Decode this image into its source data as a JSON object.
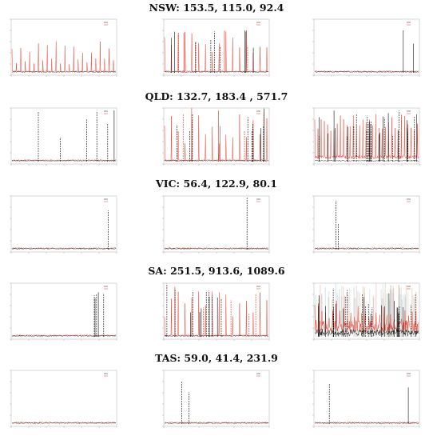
{
  "colors": {
    "forecast": "#e8301e",
    "actual": "#111111",
    "frame": "#bdbdbd",
    "band": "#e0e0e0"
  },
  "rows": [
    {
      "title": "NSW: 153.5, 115.0, 92.4",
      "chart_data": [
        {
          "type": "line",
          "pattern": "periodic-red",
          "spikes": 0
        },
        {
          "type": "line",
          "pattern": "mixed",
          "spikes": 14
        },
        {
          "type": "line",
          "pattern": "sparse-spikes",
          "spikes": 2
        }
      ]
    },
    {
      "title": "QLD: 132.7, 183.4 , 571.7",
      "chart_data": [
        {
          "type": "line",
          "pattern": "sparse-spikes",
          "spikes": 6
        },
        {
          "type": "line",
          "pattern": "mixed",
          "spikes": 16
        },
        {
          "type": "line",
          "pattern": "dense-red",
          "spikes": 30
        }
      ]
    },
    {
      "title": "VIC: 56.4, 122.9, 80.1",
      "chart_data": [
        {
          "type": "line",
          "pattern": "sparse-spikes",
          "spikes": 1
        },
        {
          "type": "line",
          "pattern": "flat",
          "spikes": 1
        },
        {
          "type": "line",
          "pattern": "flat",
          "spikes": 2
        }
      ]
    },
    {
      "title": "SA: 251.5, 913.6, 1089.6",
      "chart_data": [
        {
          "type": "line",
          "pattern": "sparse-spikes",
          "spikes": 5
        },
        {
          "type": "line",
          "pattern": "mixed",
          "spikes": 18
        },
        {
          "type": "line",
          "pattern": "dense-noisy",
          "spikes": 28
        }
      ]
    },
    {
      "title": "TAS: 59.0, 41.4, 231.9",
      "chart_data": [
        {
          "type": "line",
          "pattern": "flat",
          "spikes": 0
        },
        {
          "type": "line",
          "pattern": "sparse-spikes",
          "spikes": 2
        },
        {
          "type": "line",
          "pattern": "sparse-spikes",
          "spikes": 2
        }
      ]
    }
  ]
}
